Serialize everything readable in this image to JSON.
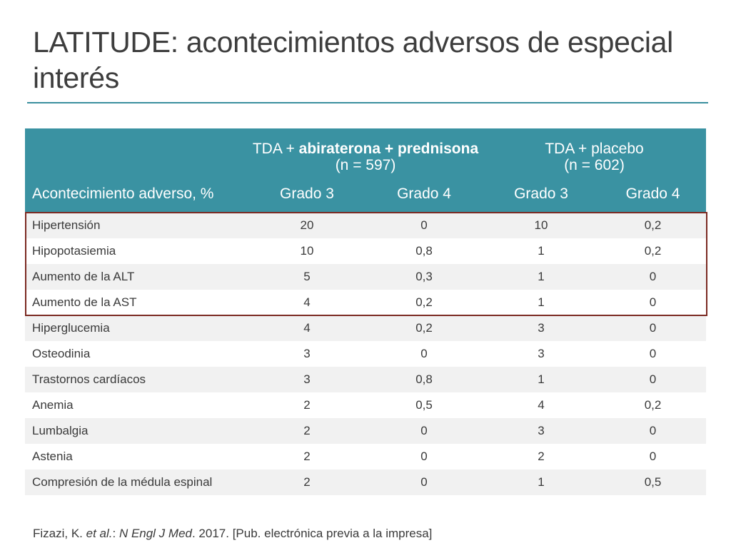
{
  "title": "LATITUDE: acontecimientos adversos de especial interés",
  "table": {
    "row_header": "Acontecimiento adverso, %",
    "groups": [
      {
        "prefix": "TDA + ",
        "bold": "abiraterona + prednisona",
        "suffix": " (n = 597)"
      },
      {
        "line1": "TDA + placebo",
        "line2": "(n = 602)"
      }
    ],
    "subheaders": [
      "Grado 3",
      "Grado 4",
      "Grado 3",
      "Grado 4"
    ],
    "rows": [
      [
        "Hipertensión",
        "20",
        "0",
        "10",
        "0,2"
      ],
      [
        "Hipopotasiemia",
        "10",
        "0,8",
        "1",
        "0,2"
      ],
      [
        "Aumento de la ALT",
        "5",
        "0,3",
        "1",
        "0"
      ],
      [
        "Aumento de la AST",
        "4",
        "0,2",
        "1",
        "0"
      ],
      [
        "Hiperglucemia",
        "4",
        "0,2",
        "3",
        "0"
      ],
      [
        "Osteodinia",
        "3",
        "0",
        "3",
        "0"
      ],
      [
        "Trastornos cardíacos",
        "3",
        "0,8",
        "1",
        "0"
      ],
      [
        "Anemia",
        "2",
        "0,5",
        "4",
        "0,2"
      ],
      [
        "Lumbalgia",
        "2",
        "0",
        "3",
        "0"
      ],
      [
        "Astenia",
        "2",
        "0",
        "2",
        "0"
      ],
      [
        "Compresión de la médula espinal",
        "2",
        "0",
        "1",
        "0,5"
      ]
    ]
  },
  "footnote": {
    "author": "Fizazi, K. ",
    "etal": "et al.",
    "colon": ": ",
    "journal": "N Engl J Med",
    "rest": ". 2017. [Pub. electrónica previa a la impresa]"
  },
  "colors": {
    "header_bg": "#3a92a2",
    "title_rule": "#3a8f9e",
    "highlight_border": "#7b2a22",
    "row_stripe": "#f1f1f1"
  }
}
